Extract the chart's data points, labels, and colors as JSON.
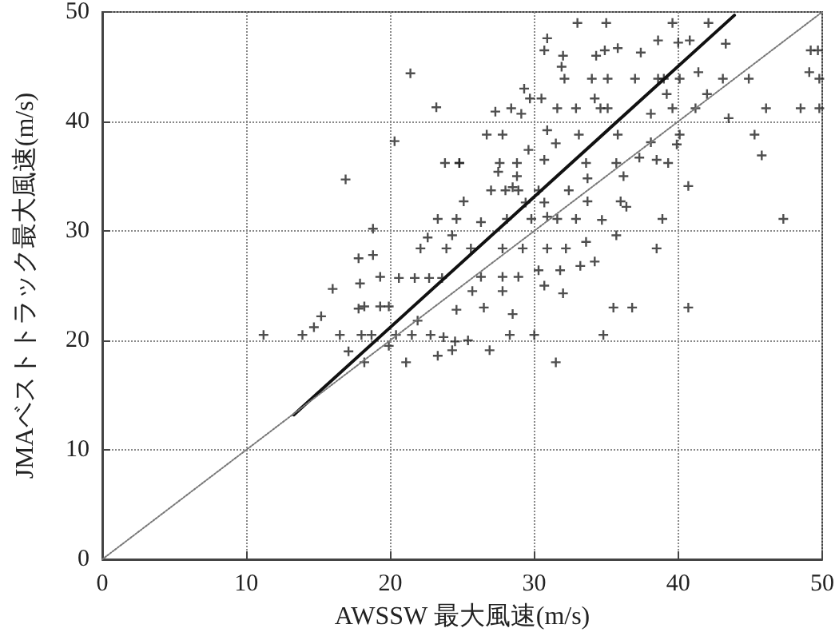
{
  "chart_data": {
    "type": "scatter",
    "xlabel": "AWSSW 最大風速(m/s)",
    "ylabel": "JMAベストトラック最大風速(m/s)",
    "xlim": [
      0,
      50
    ],
    "xticks": [
      0,
      10,
      20,
      30,
      40,
      50
    ],
    "ylim": [
      0,
      50
    ],
    "yticks": [
      0,
      10,
      20,
      30,
      40,
      50
    ],
    "grid": true,
    "series": [
      {
        "marker": "cross",
        "color": "#222222",
        "x": [
          21.4,
          23.2,
          20.3,
          23.8,
          24.8,
          16.9,
          18.8,
          17.8,
          18.8,
          17.9,
          19.3,
          16.0,
          17.8,
          18.2,
          19.3,
          19.9,
          15.2,
          20.6,
          21.7,
          22.7,
          23.6,
          23.3,
          22.1,
          22.6,
          23.9,
          33.0,
          35.0,
          39.6,
          42.1,
          30.9,
          30.7,
          32.0,
          34.9,
          35.8,
          38.6,
          40.0,
          40.8,
          43.3,
          49.2,
          49.7,
          31.9,
          34.3,
          37.4,
          32.1,
          34.0,
          35.1,
          37.0,
          38.6,
          39.0,
          40.1,
          41.4,
          43.1,
          44.9,
          49.1,
          49.8,
          29.3,
          29.7,
          30.5,
          34.2,
          39.2,
          42.0,
          27.3,
          28.4,
          29.1,
          31.6,
          32.9,
          34.6,
          35.1,
          38.1,
          39.6,
          41.2,
          43.5,
          46.1,
          48.5,
          49.8,
          26.7,
          27.8,
          30.9,
          29.6,
          31.5,
          33.1,
          35.8,
          40.1,
          38.1,
          39.9,
          45.3,
          45.8,
          24.8,
          27.6,
          28.8,
          27.5,
          28.8,
          30.7,
          33.6,
          35.7,
          37.3,
          38.5,
          39.3,
          33.7,
          36.2,
          40.7,
          27.0,
          28.0,
          28.5,
          28.9,
          30.3,
          32.4,
          33.7,
          36.0,
          36.4,
          25.1,
          29.4,
          30.7,
          24.6,
          26.3,
          28.1,
          29.8,
          30.9,
          31.6,
          32.9,
          34.7,
          38.9,
          47.3,
          35.7,
          33.6,
          24.3,
          25.6,
          27.8,
          29.2,
          30.9,
          32.2,
          38.5,
          34.2,
          33.2,
          31.8,
          30.3,
          30.7,
          26.3,
          27.8,
          28.9,
          32.0,
          35.5,
          36.8,
          40.7,
          25.7,
          27.8,
          24.6,
          26.5,
          28.5,
          31.5,
          30.0,
          28.3,
          34.8,
          26.9,
          24.5,
          25.4,
          11.2,
          13.9,
          14.7,
          16.5,
          18.0,
          18.7,
          17.1,
          18.2,
          19.9,
          21.1,
          20.4,
          21.5,
          21.9,
          23.3,
          24.3,
          22.8,
          23.7
        ],
        "values": [
          44.4,
          41.3,
          38.2,
          36.2,
          36.2,
          34.7,
          30.2,
          27.5,
          27.8,
          25.2,
          25.8,
          24.7,
          22.9,
          23.1,
          23.1,
          23.1,
          22.2,
          25.7,
          25.7,
          25.7,
          25.7,
          31.1,
          28.4,
          29.4,
          28.4,
          49.0,
          49.0,
          49.0,
          49.0,
          47.6,
          46.5,
          46.0,
          46.5,
          46.7,
          47.4,
          47.2,
          47.4,
          47.1,
          46.5,
          46.5,
          45.0,
          46.0,
          46.3,
          43.9,
          43.9,
          43.9,
          43.9,
          43.9,
          43.9,
          43.9,
          44.5,
          43.9,
          43.9,
          44.5,
          43.9,
          43.0,
          42.1,
          42.1,
          42.1,
          42.5,
          42.5,
          40.9,
          41.2,
          40.7,
          41.2,
          41.2,
          41.2,
          41.2,
          40.7,
          41.2,
          41.2,
          40.3,
          41.2,
          41.2,
          41.2,
          38.8,
          38.8,
          39.2,
          37.4,
          38.0,
          38.8,
          38.8,
          38.8,
          38.1,
          37.9,
          38.8,
          36.9,
          36.2,
          36.2,
          36.2,
          35.4,
          35.0,
          36.5,
          36.2,
          36.2,
          36.7,
          36.5,
          36.2,
          34.8,
          35.0,
          34.1,
          33.7,
          33.7,
          34.0,
          33.7,
          33.7,
          33.7,
          32.7,
          32.7,
          32.2,
          32.7,
          32.6,
          32.6,
          31.1,
          30.8,
          31.1,
          31.1,
          31.3,
          31.1,
          31.1,
          31.0,
          31.1,
          31.1,
          29.6,
          29.0,
          29.6,
          28.4,
          28.4,
          28.4,
          28.4,
          28.4,
          28.4,
          27.2,
          26.8,
          26.4,
          26.4,
          25.0,
          25.8,
          25.8,
          25.8,
          24.3,
          23.0,
          23.0,
          23.0,
          24.5,
          24.5,
          22.8,
          23.0,
          22.4,
          18.0,
          20.5,
          20.5,
          20.5,
          19.1,
          19.9,
          20.0,
          20.5,
          20.5,
          21.2,
          20.5,
          20.5,
          20.5,
          19.0,
          18.0,
          19.5,
          18.0,
          20.5,
          20.5,
          21.8,
          18.6,
          19.1,
          20.5,
          20.3
        ]
      },
      {
        "type": "line",
        "color": "#111111",
        "line_style": "solid",
        "marker": "none",
        "x": [
          13.3,
          43.9
        ],
        "values": [
          13.2,
          49.7
        ]
      },
      {
        "type": "line",
        "color": "#777777",
        "line_style": "dotted",
        "marker": "none",
        "x": [
          0,
          50
        ],
        "values": [
          0,
          50
        ]
      }
    ]
  }
}
